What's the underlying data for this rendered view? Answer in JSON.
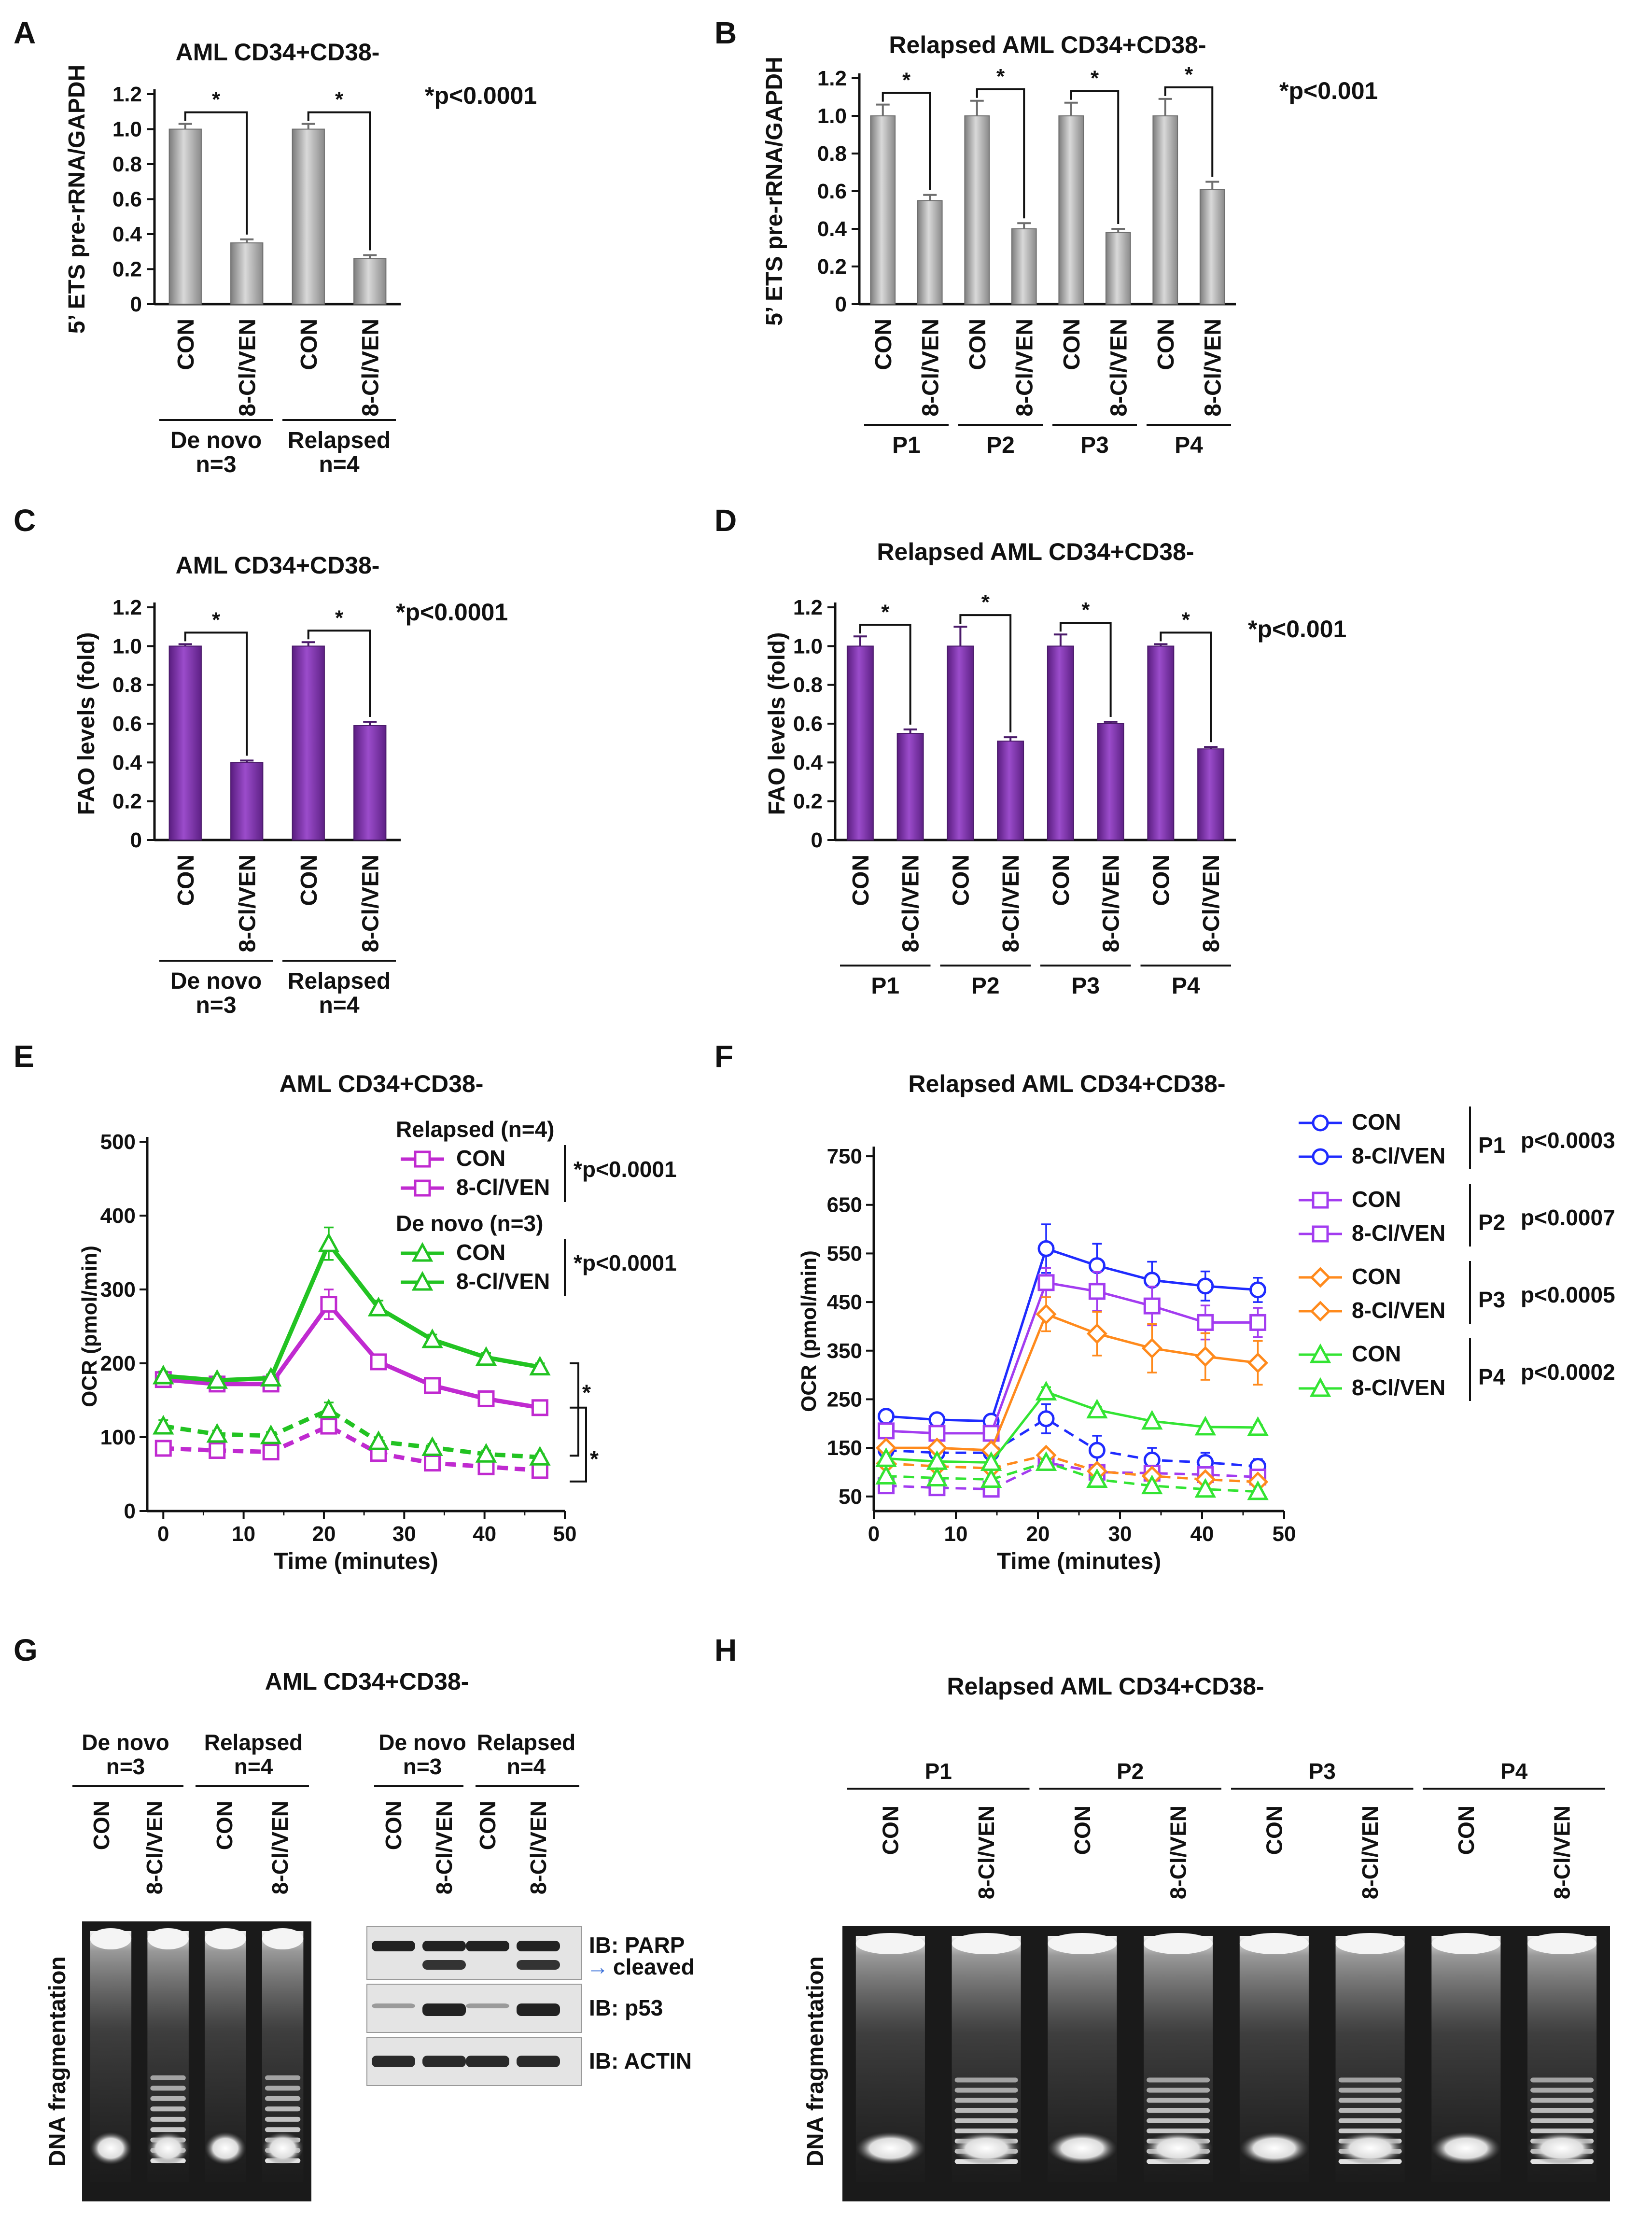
{
  "panels": {
    "A": "A",
    "B": "B",
    "C": "C",
    "D": "D",
    "E": "E",
    "F": "F",
    "G": "G",
    "H": "H"
  },
  "colors": {
    "gray_bar": "#a9a9a9",
    "purple_bar": "#7b2fa6",
    "green": "#22c322",
    "magenta": "#c02ad0",
    "blue": "#1f2bff",
    "violet": "#a33cf0",
    "orange": "#ff8a1c",
    "lime": "#33e433"
  },
  "chart_data": [
    {
      "id": "A",
      "type": "bar",
      "title": "AML CD34+CD38-",
      "ylabel": "5’ ETS pre-rRNA/GAPDH",
      "ylim": [
        0,
        1.2
      ],
      "yticks": [
        "0",
        "0.2",
        "0.4",
        "0.6",
        "0.8",
        "1.0",
        "1.2"
      ],
      "categories": [
        "CON",
        "8-Cl/VEN",
        "CON",
        "8-Cl/VEN"
      ],
      "values": [
        1.0,
        0.35,
        1.0,
        0.26
      ],
      "errors": [
        0.03,
        0.02,
        0.03,
        0.02
      ],
      "groups": [
        {
          "label": "De novo",
          "sub": "n=3"
        },
        {
          "label": "Relapsed",
          "sub": "n=4"
        }
      ],
      "sig_mark": "*",
      "pvalue": "*p<0.0001"
    },
    {
      "id": "B",
      "type": "bar",
      "title": "Relapsed AML CD34+CD38-",
      "ylabel": "5’ ETS pre-rRNA/GAPDH",
      "ylim": [
        0,
        1.2
      ],
      "yticks": [
        "0",
        "0.2",
        "0.4",
        "0.6",
        "0.8",
        "1.0",
        "1.2"
      ],
      "categories": [
        "CON",
        "8-Cl/VEN",
        "CON",
        "8-Cl/VEN",
        "CON",
        "8-Cl/VEN",
        "CON",
        "8-Cl/VEN"
      ],
      "values": [
        1.0,
        0.55,
        1.0,
        0.4,
        1.0,
        0.38,
        1.0,
        0.61
      ],
      "errors": [
        0.06,
        0.03,
        0.08,
        0.03,
        0.07,
        0.02,
        0.09,
        0.04
      ],
      "groups": [
        {
          "label": "P1",
          "sub": ""
        },
        {
          "label": "P2",
          "sub": ""
        },
        {
          "label": "P3",
          "sub": ""
        },
        {
          "label": "P4",
          "sub": ""
        }
      ],
      "sig_mark": "*",
      "pvalue": "*p<0.001"
    },
    {
      "id": "C",
      "type": "bar",
      "title": "AML CD34+CD38-",
      "ylabel": "FAO levels (fold)",
      "ylim": [
        0,
        1.2
      ],
      "yticks": [
        "0",
        "0.2",
        "0.4",
        "0.6",
        "0.8",
        "1.0",
        "1.2"
      ],
      "categories": [
        "CON",
        "8-Cl/VEN",
        "CON",
        "8-Cl/VEN"
      ],
      "values": [
        1.0,
        0.4,
        1.0,
        0.59
      ],
      "errors": [
        0.01,
        0.01,
        0.02,
        0.02
      ],
      "groups": [
        {
          "label": "De novo",
          "sub": "n=3"
        },
        {
          "label": "Relapsed",
          "sub": "n=4"
        }
      ],
      "sig_mark": "*",
      "pvalue": "*p<0.0001"
    },
    {
      "id": "D",
      "type": "bar",
      "title": "Relapsed AML CD34+CD38-",
      "ylabel": "FAO levels (fold)",
      "ylim": [
        0,
        1.2
      ],
      "yticks": [
        "0",
        "0.2",
        "0.4",
        "0.6",
        "0.8",
        "1.0",
        "1.2"
      ],
      "categories": [
        "CON",
        "8-Cl/VEN",
        "CON",
        "8-Cl/VEN",
        "CON",
        "8-Cl/VEN",
        "CON",
        "8-Cl/VEN"
      ],
      "values": [
        1.0,
        0.55,
        1.0,
        0.51,
        1.0,
        0.6,
        1.0,
        0.47
      ],
      "errors": [
        0.05,
        0.02,
        0.1,
        0.02,
        0.06,
        0.01,
        0.01,
        0.01
      ],
      "groups": [
        {
          "label": "P1",
          "sub": ""
        },
        {
          "label": "P2",
          "sub": ""
        },
        {
          "label": "P3",
          "sub": ""
        },
        {
          "label": "P4",
          "sub": ""
        }
      ],
      "sig_mark": "*",
      "pvalue": "*p<0.001"
    },
    {
      "id": "E",
      "type": "line",
      "title": "AML CD34+CD38-",
      "xlabel": "Time (minutes)",
      "ylabel": "OCR (pmol/min)",
      "xlim": [
        -2,
        50
      ],
      "ylim": [
        0,
        500
      ],
      "xticks": [
        0,
        10,
        20,
        30,
        40,
        50
      ],
      "yticks": [
        0,
        100,
        200,
        300,
        400,
        500
      ],
      "x": [
        0,
        6.7,
        13.4,
        20.6,
        26.8,
        33.5,
        40.2,
        46.9
      ],
      "series": [
        {
          "name": "Relapsed CON",
          "values": [
            178,
            172,
            172,
            280,
            202,
            170,
            152,
            140
          ],
          "errors": [
            8,
            6,
            6,
            20,
            10,
            7,
            6,
            6
          ],
          "color": "#c02ad0",
          "dashed": false,
          "marker": "square"
        },
        {
          "name": "Relapsed 8-Cl/VEN",
          "values": [
            85,
            82,
            80,
            115,
            78,
            65,
            60,
            55
          ],
          "errors": [
            6,
            5,
            5,
            10,
            6,
            5,
            5,
            5
          ],
          "color": "#c02ad0",
          "dashed": true,
          "marker": "square"
        },
        {
          "name": "De novo CON",
          "values": [
            183,
            177,
            180,
            362,
            275,
            232,
            208,
            195
          ],
          "errors": [
            6,
            5,
            5,
            22,
            10,
            7,
            6,
            5
          ],
          "color": "#22c322",
          "dashed": false,
          "marker": "triangle"
        },
        {
          "name": "De novo 8-Cl/VEN",
          "values": [
            115,
            104,
            102,
            137,
            94,
            86,
            77,
            73
          ],
          "errors": [
            8,
            5,
            5,
            10,
            6,
            5,
            5,
            4
          ],
          "color": "#22c322",
          "dashed": true,
          "marker": "triangle"
        }
      ],
      "legend": {
        "group1": "Relapsed (n=4)",
        "group2": "De novo (n=3)",
        "con": "CON",
        "ven": "8-Cl/VEN",
        "p1": "*p<0.0001",
        "p2": "*p<0.0001"
      },
      "sig_mark": "*"
    },
    {
      "id": "F",
      "type": "line",
      "title": "Relapsed AML CD34+CD38-",
      "xlabel": "Time (minutes)",
      "ylabel": "OCR (pmol/min)",
      "xlim": [
        0,
        50
      ],
      "ylim": [
        20,
        760
      ],
      "xticks": [
        0,
        10,
        20,
        30,
        40,
        50
      ],
      "yticks": [
        50,
        150,
        250,
        350,
        450,
        550,
        650,
        750
      ],
      "x": [
        1.5,
        7.7,
        14.3,
        21,
        27.2,
        33.9,
        40.4,
        46.8
      ],
      "series": [
        {
          "name": "P1 CON",
          "values": [
            215,
            208,
            205,
            560,
            525,
            495,
            483,
            475
          ],
          "errors": [
            5,
            5,
            5,
            50,
            45,
            38,
            30,
            25
          ],
          "color": "#1f2bff",
          "dashed": false,
          "marker": "circle"
        },
        {
          "name": "P1 8-Cl/VEN",
          "values": [
            145,
            140,
            140,
            210,
            145,
            125,
            120,
            112
          ],
          "errors": [
            10,
            6,
            6,
            30,
            30,
            25,
            20,
            15
          ],
          "color": "#1f2bff",
          "dashed": true,
          "marker": "circle"
        },
        {
          "name": "P2 CON",
          "values": [
            185,
            180,
            180,
            490,
            472,
            442,
            408,
            408
          ],
          "errors": [
            5,
            5,
            5,
            30,
            40,
            40,
            35,
            30
          ],
          "color": "#a33cf0",
          "dashed": false,
          "marker": "square"
        },
        {
          "name": "P2 8-Cl/VEN",
          "values": [
            72,
            68,
            65,
            120,
            100,
            98,
            95,
            90
          ],
          "errors": [
            4,
            4,
            4,
            10,
            10,
            8,
            8,
            8
          ],
          "color": "#a33cf0",
          "dashed": true,
          "marker": "square"
        },
        {
          "name": "P3 CON",
          "values": [
            150,
            150,
            145,
            425,
            385,
            355,
            338,
            325
          ],
          "errors": [
            8,
            6,
            6,
            35,
            45,
            50,
            48,
            45
          ],
          "color": "#ff8a1c",
          "dashed": false,
          "marker": "diamond"
        },
        {
          "name": "P3 8-Cl/VEN",
          "values": [
            118,
            112,
            108,
            135,
            102,
            92,
            85,
            80
          ],
          "errors": [
            6,
            5,
            5,
            10,
            6,
            6,
            6,
            5
          ],
          "color": "#ff8a1c",
          "dashed": true,
          "marker": "diamond"
        },
        {
          "name": "P4 CON",
          "values": [
            128,
            122,
            120,
            265,
            228,
            205,
            193,
            192
          ],
          "errors": [
            6,
            5,
            5,
            10,
            6,
            5,
            5,
            5
          ],
          "color": "#33e433",
          "dashed": false,
          "marker": "triangle"
        },
        {
          "name": "P4 8-Cl/VEN",
          "values": [
            92,
            88,
            85,
            120,
            85,
            72,
            65,
            60
          ],
          "errors": [
            5,
            4,
            4,
            8,
            5,
            5,
            4,
            4
          ],
          "color": "#33e433",
          "dashed": true,
          "marker": "triangle"
        }
      ],
      "legend": [
        {
          "con": "CON",
          "ven": "8-Cl/VEN",
          "patient": "P1",
          "p": "p<0.0003"
        },
        {
          "con": "CON",
          "ven": "8-Cl/VEN",
          "patient": "P2",
          "p": "p<0.0007"
        },
        {
          "con": "CON",
          "ven": "8-Cl/VEN",
          "patient": "P3",
          "p": "p<0.0005"
        },
        {
          "con": "CON",
          "ven": "8-Cl/VEN",
          "patient": "P4",
          "p": "p<0.0002"
        }
      ]
    }
  ],
  "gel_G": {
    "title": "AML CD34+CD38-",
    "group1": "De novo",
    "group1_sub": "n=3",
    "group2": "Relapsed",
    "group2_sub": "n=4",
    "lanes": [
      "CON",
      "8-Cl/VEN",
      "CON",
      "8-Cl/VEN"
    ],
    "side_label": "DNA fragmentation",
    "ladder": [
      false,
      true,
      false,
      true
    ]
  },
  "blot_G": {
    "group1": "De novo",
    "group1_sub": "n=3",
    "group2": "Relapsed",
    "group2_sub": "n=4",
    "lanes": [
      "CON",
      "8-Cl/VEN",
      "CON",
      "8-Cl/VEN"
    ],
    "ib_parp": "IB: PARP",
    "cleaved": "cleaved",
    "ib_p53": "IB: p53",
    "ib_actin": "IB: ACTIN",
    "arrow": "→"
  },
  "gel_H": {
    "title": "Relapsed AML CD34+CD38-",
    "patients": [
      "P1",
      "P2",
      "P3",
      "P4"
    ],
    "lanes": [
      "CON",
      "8-Cl/VEN",
      "CON",
      "8-Cl/VEN",
      "CON",
      "8-Cl/VEN",
      "CON",
      "8-Cl/VEN"
    ],
    "side_label": "DNA fragmentation",
    "ladder": [
      false,
      true,
      false,
      true,
      false,
      true,
      false,
      true
    ]
  }
}
